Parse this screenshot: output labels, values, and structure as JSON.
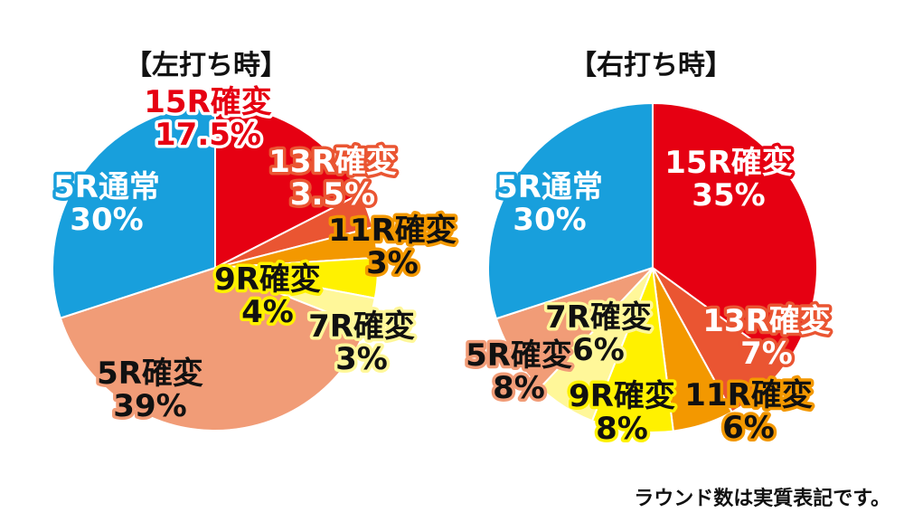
{
  "footnote": "ラウンド数は実質表記です。",
  "chart_data": [
    {
      "type": "pie",
      "title": "【左打ち時】",
      "start_angle_deg": 0,
      "slices": [
        {
          "name": "15R確変",
          "value": 17.5,
          "value_label": "17.5%",
          "color": "#e60012",
          "text_color": "#e60012",
          "stroke_color": "#ffffff"
        },
        {
          "name": "13R確変",
          "value": 3.5,
          "value_label": "3.5%",
          "color": "#ea5532",
          "text_color": "#ffffff",
          "stroke_color": "#ea5532"
        },
        {
          "name": "11R確変",
          "value": 3,
          "value_label": "3%",
          "color": "#f39800",
          "text_color": "#111111",
          "stroke_color": "#f39800"
        },
        {
          "name": "9R確変",
          "value": 4,
          "value_label": "4%",
          "color": "#fff100",
          "text_color": "#111111",
          "stroke_color": "#fff100"
        },
        {
          "name": "7R確変",
          "value": 3,
          "value_label": "3%",
          "color": "#fff799",
          "text_color": "#111111",
          "stroke_color": "#fff799"
        },
        {
          "name": "5R確変",
          "value": 39,
          "value_label": "39%",
          "color": "#f19c77",
          "text_color": "#111111",
          "stroke_color": "#f19c77"
        },
        {
          "name": "5R通常",
          "value": 30,
          "value_label": "30%",
          "color": "#189fdc",
          "text_color": "#ffffff",
          "stroke_color": "#189fdc"
        }
      ]
    },
    {
      "type": "pie",
      "title": "【右打ち時】",
      "start_angle_deg": 0,
      "slices": [
        {
          "name": "15R確変",
          "value": 35,
          "value_label": "35%",
          "color": "#e60012",
          "text_color": "#ffffff",
          "stroke_color": "#e60012"
        },
        {
          "name": "13R確変",
          "value": 7,
          "value_label": "7%",
          "color": "#ea5532",
          "text_color": "#ffffff",
          "stroke_color": "#ea5532"
        },
        {
          "name": "11R確変",
          "value": 6,
          "value_label": "6%",
          "color": "#f39800",
          "text_color": "#111111",
          "stroke_color": "#f39800"
        },
        {
          "name": "9R確変",
          "value": 8,
          "value_label": "8%",
          "color": "#fff100",
          "text_color": "#111111",
          "stroke_color": "#fff100"
        },
        {
          "name": "7R確変",
          "value": 6,
          "value_label": "6%",
          "color": "#fff799",
          "text_color": "#111111",
          "stroke_color": "#fff799"
        },
        {
          "name": "5R確変",
          "value": 8,
          "value_label": "8%",
          "color": "#f19c77",
          "text_color": "#111111",
          "stroke_color": "#f19c77"
        },
        {
          "name": "5R通常",
          "value": 30,
          "value_label": "30%",
          "color": "#189fdc",
          "text_color": "#ffffff",
          "stroke_color": "#189fdc"
        }
      ]
    }
  ]
}
